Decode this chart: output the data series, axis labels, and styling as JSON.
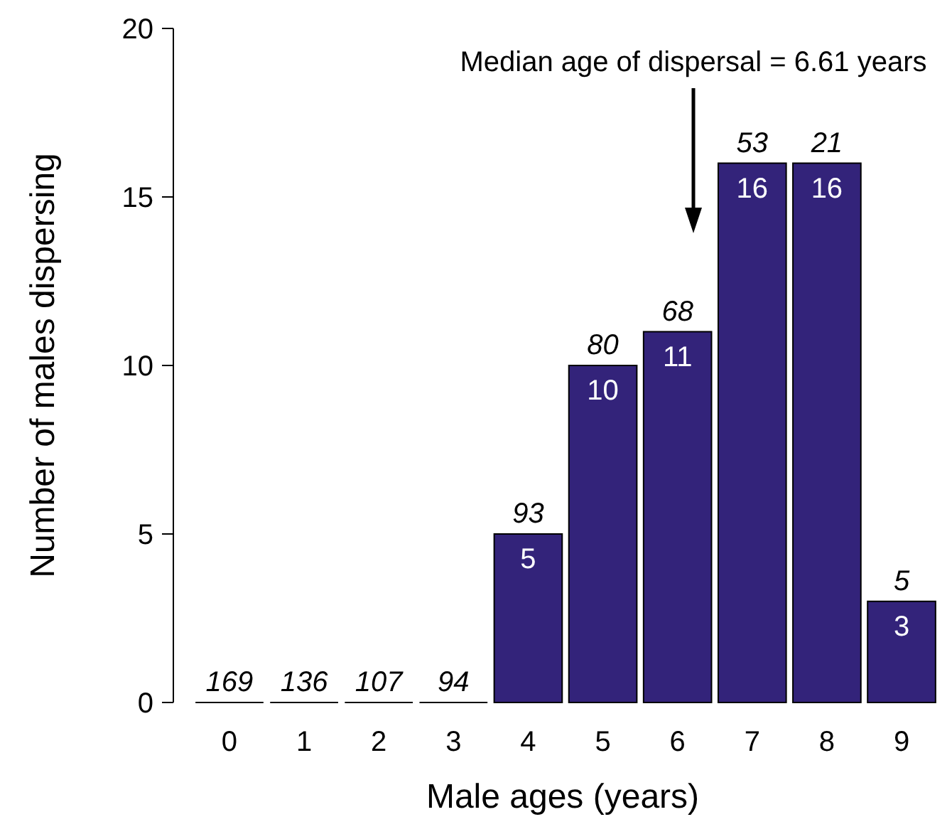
{
  "chart_data": {
    "type": "bar",
    "xlabel": "Male ages (years)",
    "ylabel": "Number of males dispersing",
    "categories": [
      "0",
      "1",
      "2",
      "3",
      "4",
      "5",
      "6",
      "7",
      "8",
      "9"
    ],
    "values": [
      0,
      0,
      0,
      0,
      5,
      10,
      11,
      16,
      16,
      3
    ],
    "color": "#33237a",
    "value_labels": [
      null,
      null,
      null,
      null,
      "5",
      "10",
      "11",
      "16",
      "16",
      "3"
    ],
    "ylim": [
      0,
      20
    ],
    "yticks": [
      0,
      5,
      10,
      15,
      20
    ],
    "grid": false,
    "annotations": [
      {
        "text": "Median age of dispersal = 6.61 years"
      },
      {
        "text": "169",
        "x": "0",
        "y": 0
      },
      {
        "text": "136",
        "x": "1",
        "y": 0
      },
      {
        "text": "107",
        "x": "2",
        "y": 0
      },
      {
        "text": "94",
        "x": "3",
        "y": 0
      },
      {
        "text": "93",
        "x": "4",
        "y": 5
      },
      {
        "text": "80",
        "x": "5",
        "y": 10
      },
      {
        "text": "68",
        "x": "6",
        "y": 11
      },
      {
        "text": "53",
        "x": "7",
        "y": 16
      },
      {
        "text": "21",
        "x": "8",
        "y": 16
      },
      {
        "text": "5",
        "x": "9",
        "y": 3
      }
    ]
  }
}
